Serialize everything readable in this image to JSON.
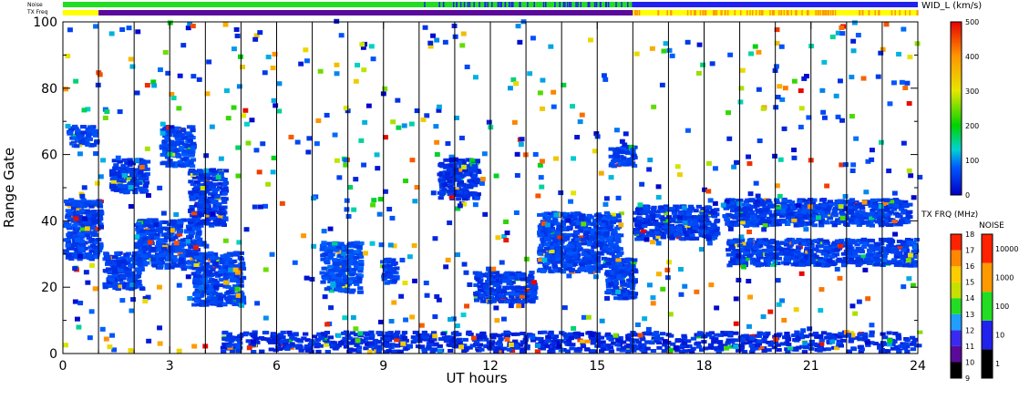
{
  "header": {
    "noise_label": "Noise",
    "txfreq_label": "TX Freq",
    "wid_label": "WID_L (km/s)"
  },
  "axes": {
    "ylabel": "Range Gate",
    "xlabel": "UT hours",
    "x_ticks": [
      "0",
      "3",
      "6",
      "9",
      "12",
      "15",
      "18",
      "21",
      "24"
    ],
    "y_ticks": [
      "0",
      "20",
      "40",
      "60",
      "80",
      "100"
    ]
  },
  "colorbars": {
    "wid": {
      "label": "WID_L (km/s)",
      "ticks": [
        "0",
        "100",
        "200",
        "300",
        "400",
        "500"
      ]
    },
    "txfrq": {
      "label": "TX FRQ (MHz)",
      "ticks": [
        "9",
        "10",
        "11",
        "12",
        "13",
        "14",
        "15",
        "16",
        "17",
        "18"
      ]
    },
    "noise": {
      "label": "NOISE",
      "ticks": [
        "1",
        "10",
        "100",
        "1000",
        "10000"
      ]
    }
  },
  "colors": {
    "scatter_main": "#1f3cff",
    "scatter_dark": "#2a1fd0",
    "noise_green": "#22dd22",
    "noise_blue": "#2222ee",
    "tx_yellow": "#ffff00",
    "tx_purple": "#5a0a9a",
    "tx_orange": "#ff9900"
  },
  "chart_data": {
    "type": "scatter",
    "title": "",
    "xlabel": "UT hours",
    "ylabel": "Range Gate",
    "xlim": [
      0,
      24
    ],
    "ylim": [
      0,
      100
    ],
    "x_tick_values": [
      0,
      3,
      6,
      9,
      12,
      15,
      18,
      21,
      24
    ],
    "y_tick_values": [
      0,
      20,
      40,
      60,
      80,
      100
    ],
    "vertical_lines_every_hours": 1,
    "color_scale": "WID_L (km/s)",
    "color_range": [
      0,
      500
    ],
    "dense_regions": [
      {
        "x": [
          0.0,
          1.0
        ],
        "y": [
          28,
          46
        ],
        "level": 60
      },
      {
        "x": [
          0.1,
          0.9
        ],
        "y": [
          62,
          68
        ],
        "level": 60
      },
      {
        "x": [
          1.1,
          2.2
        ],
        "y": [
          19,
          30
        ],
        "level": 55
      },
      {
        "x": [
          2.0,
          3.8
        ],
        "y": [
          25,
          40
        ],
        "level": 60
      },
      {
        "x": [
          1.3,
          2.3
        ],
        "y": [
          48,
          58
        ],
        "level": 50
      },
      {
        "x": [
          2.7,
          3.6
        ],
        "y": [
          56,
          68
        ],
        "level": 65
      },
      {
        "x": [
          3.5,
          4.5
        ],
        "y": [
          38,
          55
        ],
        "level": 50
      },
      {
        "x": [
          3.6,
          5.0
        ],
        "y": [
          14,
          30
        ],
        "level": 60
      },
      {
        "x": [
          7.2,
          8.3
        ],
        "y": [
          18,
          33
        ],
        "level": 70
      },
      {
        "x": [
          8.9,
          9.3
        ],
        "y": [
          20,
          28
        ],
        "level": 60
      },
      {
        "x": [
          11.5,
          13.2
        ],
        "y": [
          15,
          24
        ],
        "level": 55
      },
      {
        "x": [
          13.3,
          15.6
        ],
        "y": [
          24,
          42
        ],
        "level": 60
      },
      {
        "x": [
          15.2,
          16.0
        ],
        "y": [
          16,
          28
        ],
        "level": 55
      },
      {
        "x": [
          15.3,
          16.0
        ],
        "y": [
          56,
          62
        ],
        "level": 60
      },
      {
        "x": [
          16.0,
          18.3
        ],
        "y": [
          34,
          44
        ],
        "level": 50
      },
      {
        "x": [
          18.5,
          23.7
        ],
        "y": [
          38,
          46
        ],
        "level": 55
      },
      {
        "x": [
          18.6,
          23.9
        ],
        "y": [
          26,
          34
        ],
        "level": 55
      },
      {
        "x": [
          4.4,
          24.0
        ],
        "y": [
          0,
          6
        ],
        "level": 40
      },
      {
        "x": [
          10.5,
          11.6
        ],
        "y": [
          46,
          58
        ],
        "level": 45
      }
    ]
  }
}
